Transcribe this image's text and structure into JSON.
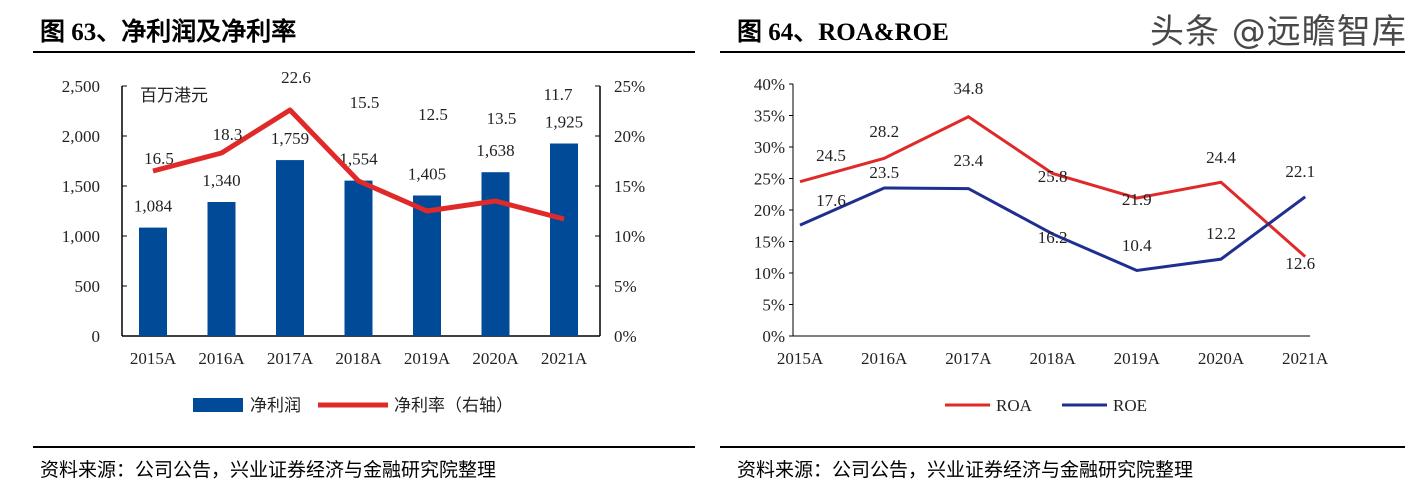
{
  "left": {
    "title": "图 63、净利润及净利率",
    "footer": "资料来源：公司公告，兴业证券经济与金融研究院整理"
  },
  "right": {
    "title": "图 64、ROA&ROE",
    "footer": "资料来源：公司公告，兴业证券经济与金融研究院整理"
  },
  "watermark": "头条 @远瞻智库",
  "chart_data": [
    {
      "type": "bar+line",
      "categories": [
        "2015A",
        "2016A",
        "2017A",
        "2018A",
        "2019A",
        "2020A",
        "2021A"
      ],
      "unit_label": "百万港元",
      "series": [
        {
          "name": "净利润",
          "type": "bar",
          "axis": "left",
          "color": "#004a98",
          "values": [
            1084,
            1340,
            1759,
            1554,
            1405,
            1638,
            1925
          ],
          "labels": [
            "1,084",
            "1,340",
            "1,759",
            "1,554",
            "1,405",
            "1,638",
            "1,925"
          ]
        },
        {
          "name": "净利率（右轴）",
          "type": "line",
          "axis": "right",
          "color": "#e02a2a",
          "values": [
            16.5,
            18.3,
            22.6,
            15.5,
            12.5,
            13.5,
            11.7
          ],
          "labels": [
            "16.5",
            "18.3",
            "22.6",
            "15.5",
            "12.5",
            "13.5",
            "11.7"
          ]
        }
      ],
      "ylim": [
        0,
        2500
      ],
      "yticks": [
        "0",
        "500",
        "1,000",
        "1,500",
        "2,000",
        "2,500"
      ],
      "y2lim": [
        0,
        25
      ],
      "y2ticks": [
        "0%",
        "5%",
        "10%",
        "15%",
        "20%",
        "25%"
      ],
      "legend": "bottom"
    },
    {
      "type": "line",
      "categories": [
        "2015A",
        "2016A",
        "2017A",
        "2018A",
        "2019A",
        "2020A",
        "2021A"
      ],
      "series": [
        {
          "name": "ROA",
          "color": "#e02a2a",
          "values": [
            24.5,
            28.2,
            34.8,
            25.8,
            21.9,
            24.4,
            12.6
          ],
          "labels": [
            "24.5",
            "28.2",
            "34.8",
            "25.8",
            "21.9",
            "24.4",
            "12.6"
          ]
        },
        {
          "name": "ROE",
          "color": "#1f2f8f",
          "values": [
            17.6,
            23.5,
            23.4,
            16.2,
            10.4,
            12.2,
            22.1
          ],
          "labels": [
            "17.6",
            "23.5",
            "23.4",
            "16.2",
            "10.4",
            "12.2",
            "22.1"
          ]
        }
      ],
      "ylim": [
        0,
        40
      ],
      "yticks": [
        "0%",
        "5%",
        "10%",
        "15%",
        "20%",
        "25%",
        "30%",
        "35%",
        "40%"
      ],
      "legend": "bottom"
    }
  ]
}
